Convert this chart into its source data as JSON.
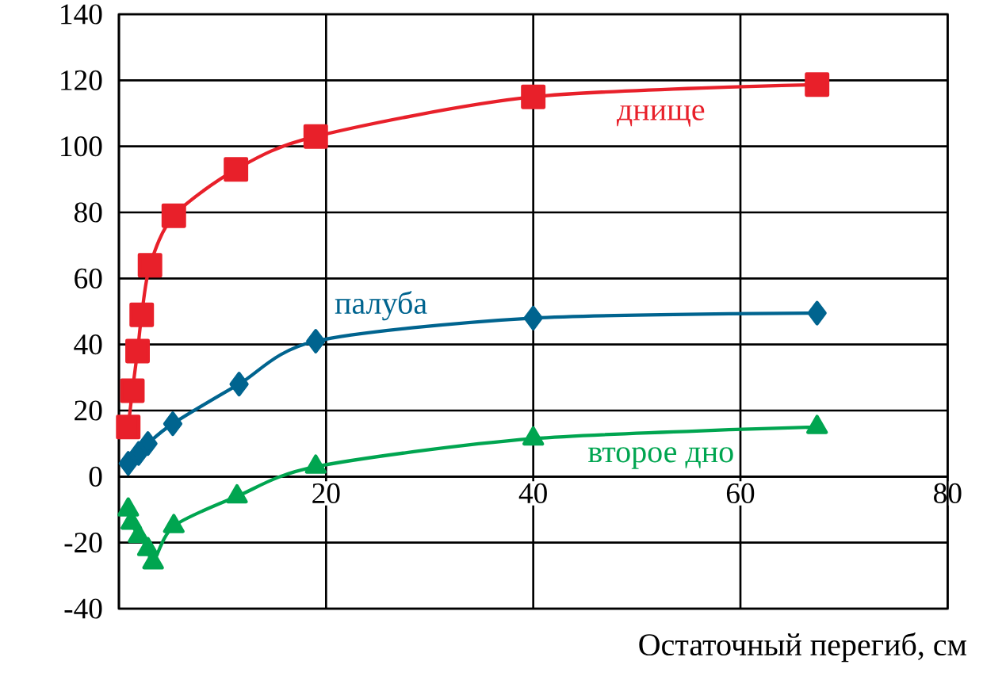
{
  "chart_data": {
    "type": "line",
    "xlabel": "Остаточный перегиб, см",
    "xlim": [
      0,
      80
    ],
    "xticks": [
      20,
      40,
      60,
      80
    ],
    "ylim": [
      -40,
      140
    ],
    "yticks": [
      -40,
      -20,
      0,
      20,
      40,
      60,
      80,
      100,
      120,
      140
    ],
    "grid": true,
    "line_style": "solid",
    "series": [
      {
        "name": "днище",
        "color": "#e8202a",
        "marker": "square",
        "x": [
          0.9,
          1.3,
          1.8,
          2.2,
          3,
          5.3,
          11.3,
          19,
          40,
          67.4
        ],
        "values": [
          15,
          26,
          38,
          49,
          64,
          79,
          93,
          103,
          115,
          118.7
        ]
      },
      {
        "name": "палуба",
        "color": "#00648f",
        "marker": "diamond",
        "x": [
          0.9,
          1.9,
          2.8,
          5.2,
          11.6,
          19,
          40,
          67.4
        ],
        "values": [
          4,
          7,
          10,
          16,
          28,
          41,
          48,
          49.5
        ]
      },
      {
        "name": "второе дно",
        "color": "#00a550",
        "marker": "triangle",
        "x": [
          0.9,
          1.2,
          1.9,
          2.8,
          3.3,
          5.3,
          11.4,
          19,
          40,
          67.4
        ],
        "values": [
          -10,
          -14,
          -18,
          -22,
          -26,
          -15,
          -6,
          3,
          11.5,
          15
        ]
      }
    ]
  }
}
